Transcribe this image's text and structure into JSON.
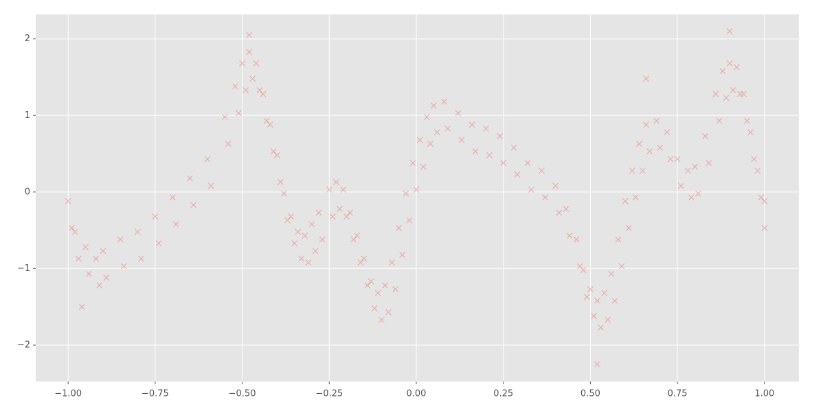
{
  "chart_data": {
    "type": "scatter",
    "marker": "x",
    "grid": true,
    "xlim": [
      -1.093,
      1.099
    ],
    "ylim": [
      -2.475,
      2.32
    ],
    "xticks": [
      {
        "value": -1,
        "label": "−1.00"
      },
      {
        "value": -0.75,
        "label": "−0.75"
      },
      {
        "value": -0.5,
        "label": "−0.50"
      },
      {
        "value": -0.25,
        "label": "−0.25"
      },
      {
        "value": 0,
        "label": "0.00"
      },
      {
        "value": 0.25,
        "label": "0.25"
      },
      {
        "value": 0.5,
        "label": "0.50"
      },
      {
        "value": 0.75,
        "label": "0.75"
      },
      {
        "value": 1,
        "label": "1.00"
      }
    ],
    "yticks": [
      {
        "value": -2,
        "label": "−2"
      },
      {
        "value": -1,
        "label": "−1"
      },
      0,
      1,
      2
    ],
    "series": [
      {
        "color": "#E24A33",
        "x": [
          -1.0,
          -0.99,
          -0.98,
          -0.97,
          -0.95,
          -0.94,
          -0.92,
          -0.91,
          -0.9,
          -0.89,
          -0.85,
          -0.84,
          -0.8,
          -0.79,
          -0.75,
          -0.74,
          -0.7,
          -0.69,
          -0.65,
          -0.64,
          -0.6,
          -0.59,
          -0.55,
          -0.54,
          -0.52,
          -0.51,
          -0.5,
          -0.49,
          -0.48,
          -0.47,
          -0.46,
          -0.45,
          -0.44,
          -0.43,
          -0.42,
          -0.41,
          -0.4,
          -0.39,
          -0.38,
          -0.37,
          -0.36,
          -0.35,
          -0.34,
          -0.33,
          -0.32,
          -0.31,
          -0.3,
          -0.29,
          -0.28,
          -0.27,
          -0.25,
          -0.24,
          -0.23,
          -0.22,
          -0.21,
          -0.2,
          -0.19,
          -0.18,
          -0.17,
          -0.16,
          -0.15,
          -0.14,
          -0.13,
          -0.12,
          -0.11,
          -0.1,
          -0.09,
          -0.08,
          -0.07,
          -0.06,
          -0.05,
          -0.04,
          -0.03,
          -0.02,
          -0.01,
          0.0,
          0.01,
          0.02,
          0.03,
          0.04,
          0.05,
          0.06,
          0.08,
          0.09,
          0.12,
          0.13,
          0.16,
          0.17,
          0.2,
          0.21,
          0.24,
          0.25,
          0.28,
          0.29,
          0.32,
          0.33,
          0.36,
          0.37,
          0.4,
          0.41,
          0.43,
          0.44,
          0.46,
          0.47,
          0.48,
          0.49,
          0.5,
          0.51,
          0.52,
          0.53,
          0.54,
          0.55,
          0.56,
          0.57,
          0.58,
          0.59,
          0.6,
          0.61,
          0.62,
          0.63,
          0.64,
          0.65,
          0.66,
          0.67,
          0.69,
          0.7,
          0.72,
          0.73,
          0.75,
          0.76,
          0.78,
          0.79,
          0.8,
          0.81,
          0.83,
          0.84,
          0.86,
          0.87,
          0.88,
          0.89,
          0.9,
          0.91,
          0.92,
          0.93,
          0.94,
          0.95,
          0.96,
          0.97,
          0.98,
          0.99,
          1.0,
          1.0,
          -0.96,
          -0.48,
          0.52,
          0.66,
          0.9
        ],
        "values": [
          -0.12,
          -0.47,
          -0.52,
          -0.87,
          -0.72,
          -1.07,
          -0.87,
          -1.22,
          -0.77,
          -1.12,
          -0.62,
          -0.97,
          -0.52,
          -0.87,
          -0.32,
          -0.67,
          -0.07,
          -0.42,
          0.18,
          -0.17,
          0.43,
          0.08,
          0.98,
          0.63,
          1.38,
          1.03,
          1.68,
          1.33,
          1.83,
          1.48,
          1.68,
          1.33,
          1.28,
          0.93,
          0.88,
          0.53,
          0.48,
          0.13,
          -0.02,
          -0.37,
          -0.32,
          -0.67,
          -0.52,
          -0.87,
          -0.57,
          -0.92,
          -0.42,
          -0.77,
          -0.27,
          -0.62,
          0.03,
          -0.32,
          0.13,
          -0.22,
          0.03,
          -0.32,
          -0.27,
          -0.62,
          -0.57,
          -0.92,
          -0.87,
          -1.22,
          -1.17,
          -1.52,
          -1.32,
          -1.67,
          -1.22,
          -1.57,
          -0.92,
          -1.27,
          -0.47,
          -0.82,
          -0.02,
          -0.37,
          0.38,
          0.03,
          0.68,
          0.33,
          0.98,
          0.63,
          1.13,
          0.78,
          1.18,
          0.83,
          1.03,
          0.68,
          0.88,
          0.53,
          0.83,
          0.48,
          0.73,
          0.38,
          0.58,
          0.23,
          0.38,
          0.03,
          0.28,
          -0.07,
          0.08,
          -0.27,
          -0.22,
          -0.57,
          -0.62,
          -0.97,
          -1.02,
          -1.37,
          -1.27,
          -1.62,
          -1.42,
          -1.77,
          -1.32,
          -1.67,
          -1.07,
          -1.42,
          -0.62,
          -0.97,
          -0.12,
          -0.47,
          0.28,
          -0.07,
          0.63,
          0.28,
          0.88,
          0.53,
          0.93,
          0.58,
          0.78,
          0.43,
          0.43,
          0.08,
          0.28,
          -0.07,
          0.33,
          -0.02,
          0.73,
          0.38,
          1.28,
          0.93,
          1.58,
          1.23,
          1.68,
          1.33,
          1.63,
          1.28,
          1.28,
          0.93,
          0.78,
          0.43,
          0.28,
          -0.07,
          -0.12,
          -0.47,
          -1.5,
          2.05,
          -2.25,
          1.48,
          2.1
        ]
      }
    ]
  }
}
